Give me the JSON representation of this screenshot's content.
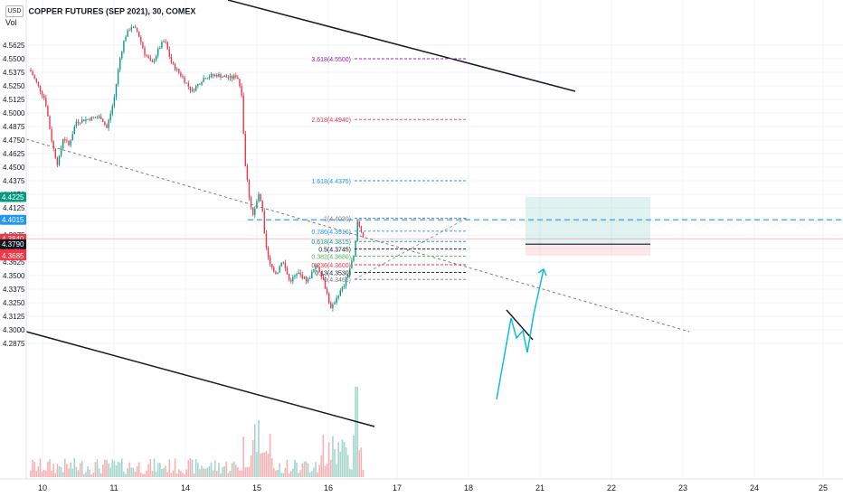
{
  "header": {
    "currency": "USD",
    "symbol_title": "COPPER FUTURES (SEP 2021), 30, COMEX",
    "indicator": "Vol"
  },
  "chart_data": {
    "type": "candlestick",
    "y_ticks": [
      "4.5625",
      "4.5500",
      "4.5375",
      "4.5250",
      "4.5125",
      "4.5000",
      "4.4875",
      "4.4750",
      "4.4625",
      "4.4500",
      "4.4375",
      "4.4250",
      "4.4125",
      "4.4000",
      "4.3875",
      "4.3750",
      "4.3625",
      "4.3500",
      "4.3375",
      "4.3250",
      "4.3125",
      "4.3000",
      "4.2875"
    ],
    "x_ticks": [
      "10",
      "11",
      "14",
      "15",
      "16",
      "17",
      "18",
      "21",
      "22",
      "23",
      "24",
      "25"
    ],
    "price_labels": [
      {
        "text": "4.4225",
        "value": 4.4225,
        "color": "#089981"
      },
      {
        "text": "4.4015",
        "value": 4.4015,
        "color": "#2196f3"
      },
      {
        "text": "4.3840",
        "value": 4.384,
        "color": "#f23645",
        "sub": "07:20"
      },
      {
        "text": "4.3790",
        "value": 4.379,
        "color": "#131722"
      },
      {
        "text": "4.3685",
        "value": 4.3685,
        "color": "#f23645"
      }
    ],
    "fib_levels": [
      {
        "label": "3.618(4.5500)",
        "value": 4.55,
        "color": "#9c27b0"
      },
      {
        "label": "2.618(4.4940)",
        "value": 4.494,
        "color": "#f23645"
      },
      {
        "label": "1.618(4.4375)",
        "value": 4.4375,
        "color": "#2196f3"
      },
      {
        "label": "1(4.4030)",
        "value": 4.403,
        "color": "#787b86"
      },
      {
        "label": "0.786(4.3910)",
        "value": 4.391,
        "color": "#2196f3"
      },
      {
        "label": "0.618(4.3815)",
        "value": 4.3815,
        "color": "#089981"
      },
      {
        "label": "0.5(4.3745)",
        "value": 4.3745,
        "color": "#131722"
      },
      {
        "label": "0.382(4.3680)",
        "value": 4.368,
        "color": "#4caf50"
      },
      {
        "label": "0.236(4.3600)",
        "value": 4.36,
        "color": "#f23645"
      },
      {
        "label": "0.13(4.3530)",
        "value": 4.353,
        "color": "#131722"
      },
      {
        "label": "0(4.3465)",
        "value": 4.3465,
        "color": "#787b86"
      }
    ],
    "position": {
      "entry": 4.379,
      "target": 4.4225,
      "stop": 4.3685
    },
    "horizontal_line": 4.4015,
    "colors": {
      "up": "#089981",
      "down": "#f23645",
      "vol_up": "#a5d6cb",
      "vol_down": "#f7b1b6",
      "projection": "#00bcd4"
    }
  }
}
